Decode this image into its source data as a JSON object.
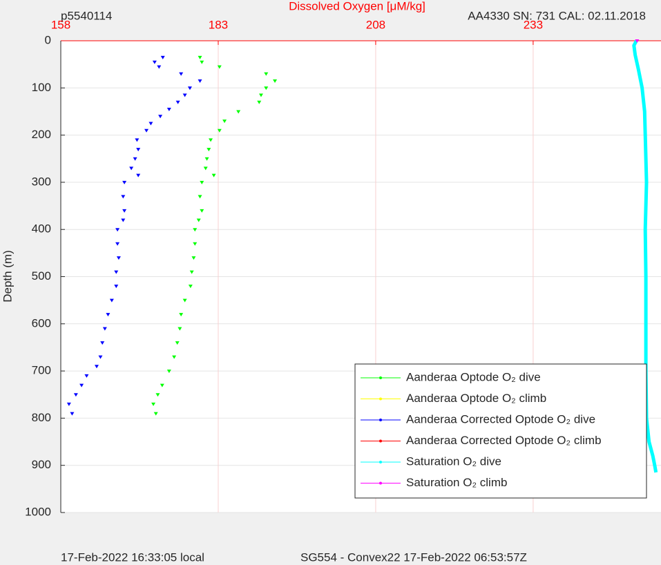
{
  "chart_data": {
    "type": "scatter",
    "title": "Dissolved Oxygen [μM/kg]",
    "top_left": "p5540114",
    "top_right": "AA4330   SN: 731  CAL: 02.11.2018",
    "ylabel": "Depth (m)",
    "footer_left": "17-Feb-2022 16:33:05 local",
    "footer_right": "SG554 - Convex22 17-Feb-2022 06:53:57Z",
    "xlim": [
      158,
      253.3
    ],
    "xticks": [
      158,
      183,
      208,
      233
    ],
    "ylim": [
      0,
      1000
    ],
    "yticks": [
      0,
      100,
      200,
      300,
      400,
      500,
      600,
      700,
      800,
      900,
      1000
    ],
    "y_inverted": true,
    "grid": true,
    "legend": "lower right",
    "series": [
      {
        "name": "Aanderaa Optode O₂ dive",
        "color": "#00ff00",
        "style": "markers",
        "y": [
          35,
          45,
          55,
          70,
          85,
          100,
          115,
          130,
          150,
          170,
          190,
          210,
          230,
          250,
          270,
          285,
          300,
          330,
          360,
          380,
          400,
          430,
          460,
          490,
          520,
          550,
          580,
          610,
          640,
          670,
          700,
          730,
          750,
          770,
          790
        ],
        "x": [
          180.1,
          180.4,
          183.2,
          190.6,
          192.0,
          190.6,
          189.8,
          189.5,
          186.2,
          184.0,
          183.2,
          181.8,
          181.5,
          181.2,
          181.0,
          182.3,
          180.4,
          180.1,
          180.4,
          179.9,
          179.3,
          179.3,
          179.1,
          178.8,
          178.6,
          177.7,
          177.1,
          176.9,
          176.5,
          176.0,
          175.2,
          174.1,
          173.4,
          172.7,
          173.1
        ]
      },
      {
        "name": "Aanderaa Optode O₂ climb",
        "color": "#ffff00",
        "style": "markers",
        "y": [],
        "x": []
      },
      {
        "name": "Aanderaa Corrected Optode O₂ dive",
        "color": "#0000ff",
        "style": "markers",
        "y": [
          35,
          45,
          55,
          70,
          85,
          100,
          115,
          130,
          145,
          160,
          175,
          190,
          210,
          230,
          250,
          270,
          285,
          300,
          330,
          360,
          380,
          400,
          430,
          460,
          490,
          520,
          550,
          580,
          610,
          640,
          670,
          690,
          710,
          730,
          750,
          770,
          790
        ],
        "x": [
          174.2,
          172.9,
          173.6,
          177.1,
          180.1,
          178.5,
          177.7,
          176.6,
          175.2,
          173.8,
          172.3,
          171.6,
          170.1,
          170.3,
          169.8,
          169.2,
          170.3,
          168.1,
          167.9,
          168.1,
          167.9,
          167.0,
          167.0,
          167.2,
          166.8,
          166.8,
          166.1,
          165.5,
          165.0,
          164.6,
          164.3,
          163.7,
          162.1,
          161.3,
          160.4,
          159.3,
          159.8
        ]
      },
      {
        "name": "Aanderaa Corrected Optode O₂ climb",
        "color": "#ff0000",
        "style": "markers",
        "y": [],
        "x": []
      },
      {
        "name": "Saturation O₂ dive",
        "color": "#00ffff",
        "style": "line",
        "y": [
          0,
          10,
          30,
          60,
          100,
          150,
          200,
          250,
          300,
          400,
          500,
          600,
          700,
          800,
          850,
          880,
          900,
          915
        ],
        "x": [
          249.4,
          249.0,
          249.2,
          249.7,
          250.3,
          250.7,
          250.8,
          250.9,
          251.0,
          250.8,
          250.9,
          250.9,
          250.9,
          251.0,
          251.4,
          252.0,
          252.3,
          252.5
        ]
      },
      {
        "name": "Saturation O₂ climb",
        "color": "#ff00ff",
        "style": "markers",
        "y": [
          0
        ],
        "x": [
          249.5
        ]
      }
    ]
  }
}
